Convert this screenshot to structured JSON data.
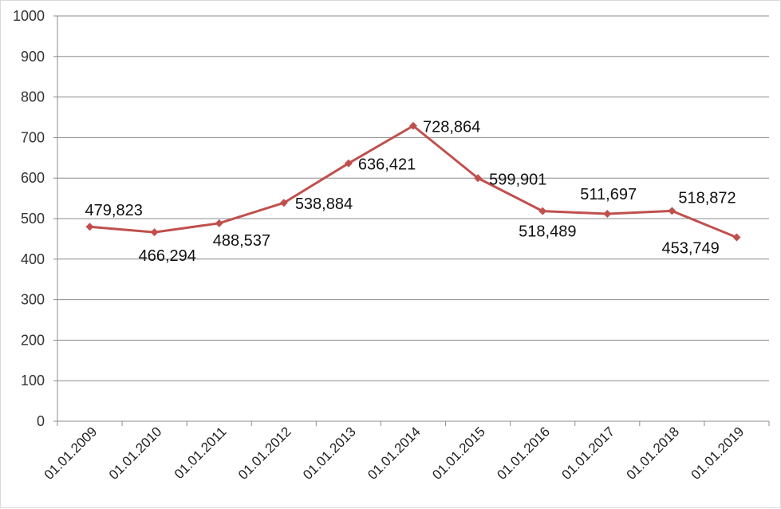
{
  "chart_data": {
    "type": "line",
    "title": "",
    "xlabel": "",
    "ylabel": "",
    "ylim": [
      0,
      1000
    ],
    "y_ticks": [
      "0",
      "100",
      "200",
      "300",
      "400",
      "500",
      "600",
      "700",
      "800",
      "900",
      "1000"
    ],
    "grid": true,
    "legend": "none",
    "categories": [
      "01.01.2009",
      "01.01.2010",
      "01.01.2011",
      "01.01.2012",
      "01.01.2013",
      "01.01.2014",
      "01.01.2015",
      "01.01.2016",
      "01.01.2017",
      "01.01.2018",
      "01.01.2019"
    ],
    "series": [
      {
        "color": "#c0504d",
        "values": [
          479.823,
          466.294,
          488.537,
          538.884,
          636.421,
          728.864,
          599.901,
          518.489,
          511.697,
          518.872,
          453.749
        ],
        "labels": [
          "479,823",
          "466,294",
          "488,537",
          "538,884",
          "636,421",
          "728,864",
          "599,901",
          "518,489",
          "511,697",
          "518,872",
          "453,749"
        ]
      }
    ]
  }
}
